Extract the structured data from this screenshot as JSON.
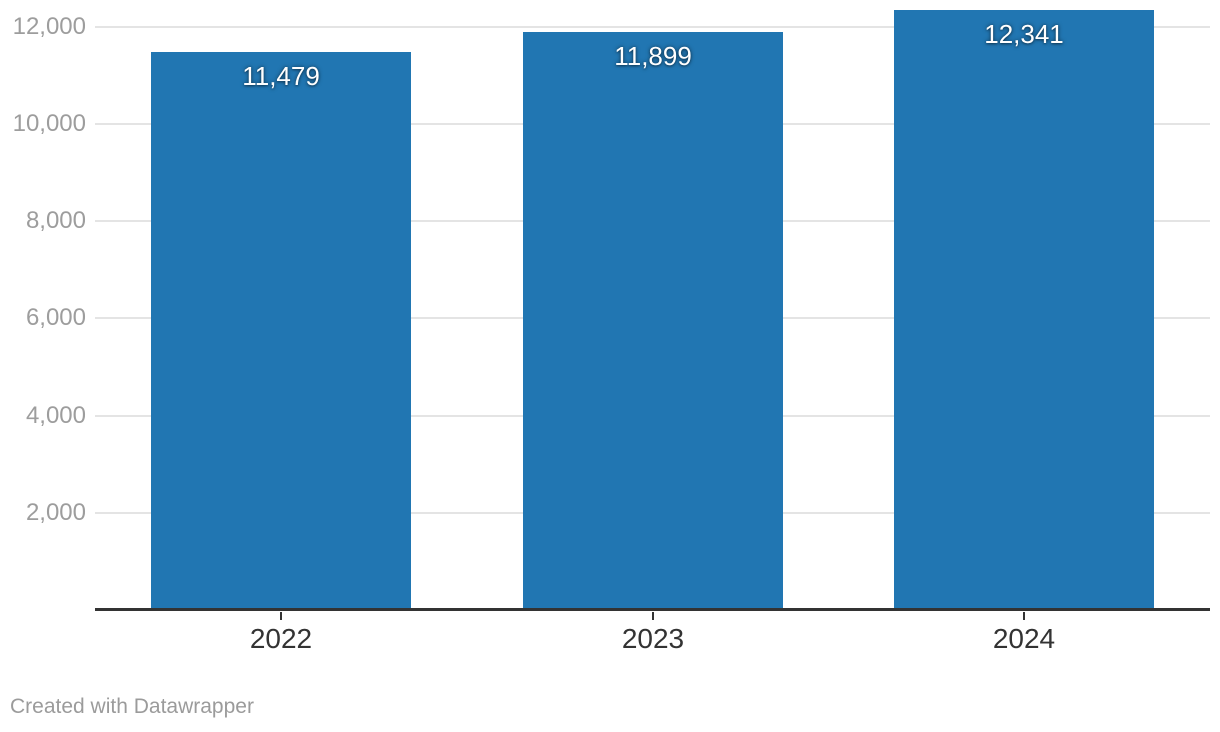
{
  "chart_data": {
    "type": "bar",
    "categories": [
      "2022",
      "2023",
      "2024"
    ],
    "values": [
      11479,
      11899,
      12341
    ],
    "value_labels": [
      "11,479",
      "11,899",
      "12,341"
    ],
    "title": "",
    "xlabel": "",
    "ylabel": "",
    "ylim": [
      0,
      12410
    ],
    "yticks": [
      2000,
      4000,
      6000,
      8000,
      10000,
      12000
    ],
    "ytick_labels": [
      "2,000",
      "4,000",
      "6,000",
      "8,000",
      "10,000",
      "12,000"
    ],
    "grid": true,
    "legend_position": "none",
    "bar_color": "#2176b2"
  },
  "colors": {
    "background": "#ffffff",
    "bar": "#2176b2",
    "gridline": "#e4e4e4",
    "axis_line": "#333333",
    "axis_tick": "#333333",
    "ytick_text": "#9d9d9d",
    "xtick_text": "#333333",
    "value_label_text": "#ffffff",
    "credit_text": "#9b9b9b"
  },
  "footer": {
    "credit": "Created with Datawrapper"
  }
}
